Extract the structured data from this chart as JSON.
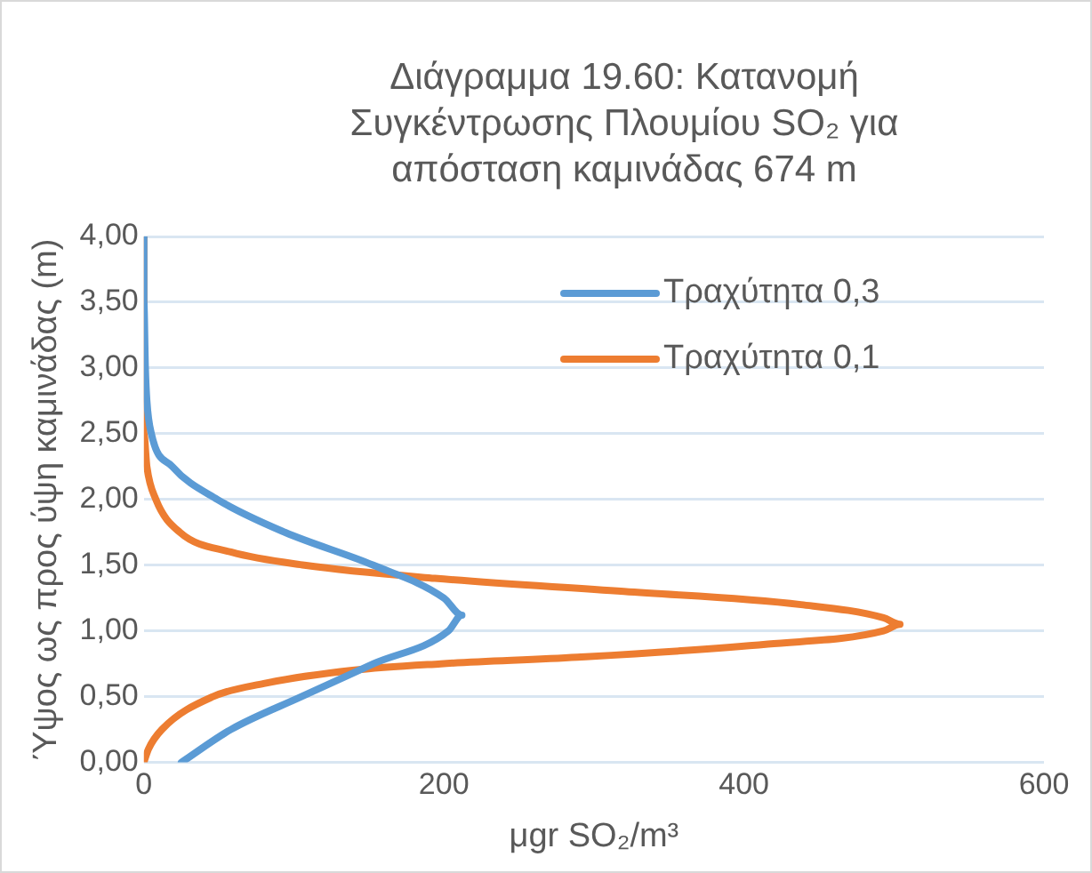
{
  "chart_data": {
    "type": "line",
    "title": "Διάγραμμα 19.60: Κατανομή Συγκέντρωσης Πλουμίου SO₂ για απόσταση καμινάδας 674  m",
    "xlabel": "μgr SO₂/m³",
    "ylabel": "Ύψος ως προς ύψη καμινάδας (m)",
    "xlim": [
      0,
      600
    ],
    "xticks": [
      0,
      200,
      400,
      600
    ],
    "ylim": [
      0,
      4
    ],
    "yticks": [
      {
        "value": 0,
        "label": "0,00"
      },
      {
        "value": 0.5,
        "label": "0,50"
      },
      {
        "value": 1,
        "label": "1,00"
      },
      {
        "value": 1.5,
        "label": "1,50"
      },
      {
        "value": 2,
        "label": "2,00"
      },
      {
        "value": 2.5,
        "label": "2,50"
      },
      {
        "value": 3,
        "label": "3,00"
      },
      {
        "value": 3.5,
        "label": "3,50"
      },
      {
        "value": 4,
        "label": "4,00"
      }
    ],
    "grid": "y",
    "legend": "top right",
    "marker": "none",
    "line_style": "solid",
    "series": [
      {
        "name": "Τραχύτητα 0,3",
        "color": "#5b9bd5",
        "x": [
          25,
          58,
          105,
          153,
          203,
          212,
          200,
          153,
          94,
          49,
          19,
          5,
          2,
          1,
          0,
          0
        ],
        "values": [
          0,
          0.25,
          0.5,
          0.75,
          1,
          1.12,
          1.25,
          1.5,
          1.75,
          2,
          2.25,
          2.5,
          2.75,
          3,
          3.5,
          4
        ]
      },
      {
        "name": "Τραχύτητα 0,1",
        "color": "#ed7d31",
        "x": [
          0,
          3,
          12,
          46,
          80,
          139,
          198,
          289,
          416,
          493,
          504,
          493,
          438,
          320,
          194,
          107,
          58,
          24,
          8,
          2,
          0,
          0
        ],
        "values": [
          0,
          0.1,
          0.25,
          0.5,
          0.6,
          0.7,
          0.75,
          0.8,
          0.9,
          1,
          1.05,
          1.1,
          1.2,
          1.3,
          1.4,
          1.5,
          1.6,
          1.75,
          2,
          2.25,
          2.5,
          4
        ]
      }
    ]
  }
}
